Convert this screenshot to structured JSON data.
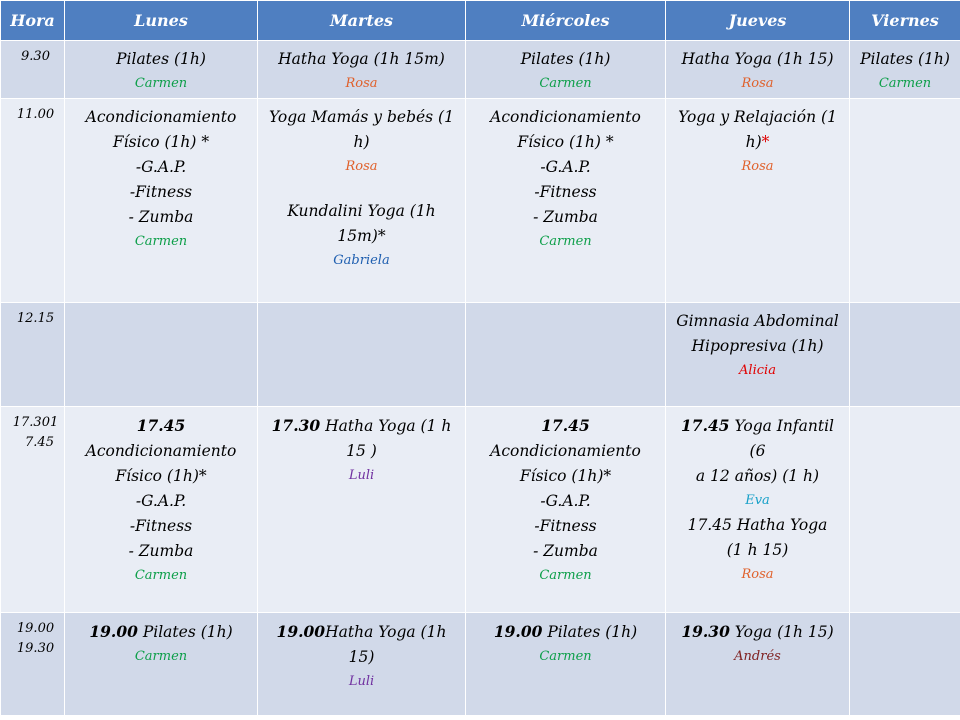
{
  "headers": {
    "hora": "Hora",
    "lunes": "Lunes",
    "martes": "Martes",
    "miercoles": "Miércoles",
    "jueves": "Jueves",
    "viernes": "Viernes"
  },
  "colors": {
    "header_bg": "#4f7fc1",
    "row_dark": "#d1d9e9",
    "row_light": "#e9edf5",
    "carmen": "#0e9f4a",
    "rosa": "#e0602a",
    "gabriela": "#1f5fb0",
    "luli": "#7030a0",
    "alicia": "#e00000",
    "eva": "#17a0c8",
    "andres": "#7f1f1f"
  },
  "r1": {
    "hora": "9.30",
    "lunes": {
      "class": "Pilates (1h)",
      "teacher": "Carmen"
    },
    "martes": {
      "class": "Hatha Yoga (1h 15m)",
      "teacher": "Rosa"
    },
    "miercoles": {
      "class": "Pilates (1h)",
      "teacher": "Carmen"
    },
    "jueves": {
      "class": "Hatha Yoga (1h 15)",
      "teacher": "Rosa"
    },
    "viernes": {
      "class": "Pilates (1h)",
      "teacher": "Carmen"
    }
  },
  "r2": {
    "hora": "11.00",
    "lunes": {
      "l1": "Acondicionamiento",
      "l2": "Físico (1h) *",
      "l3": "-G.A.P.",
      "l4": "-Fitness",
      "l5": "- Zumba",
      "teacher": "Carmen"
    },
    "martes": {
      "l1": "Yoga Mamás y bebés (1",
      "l2": "h)",
      "teacher": "Rosa",
      "l3": "Kundalini Yoga (1h",
      "l4": "15m)*",
      "teacher2": "Gabriela"
    },
    "miercoles": {
      "l1": "Acondicionamiento",
      "l2": "Físico (1h) *",
      "l3": "-G.A.P.",
      "l4": "-Fitness",
      "l5": "- Zumba",
      "teacher": "Carmen"
    },
    "jueves": {
      "l1": "Yoga y Relajación (1",
      "l2": "h)",
      "star": "*",
      "teacher": "Rosa"
    }
  },
  "r3": {
    "hora": "12.15",
    "jueves": {
      "l1": "Gimnasia Abdominal",
      "l2": "Hipopresiva (1h)",
      "teacher": "Alicia"
    }
  },
  "r4": {
    "hora1": "17.301",
    "hora2": "7.45",
    "lunes": {
      "time": "17.45",
      "l1": "Acondicionamiento",
      "l2": "Físico (1h)*",
      "l3": "-G.A.P.",
      "l4": "-Fitness",
      "l5": "- Zumba",
      "teacher": "Carmen"
    },
    "martes": {
      "time": "17.30",
      "l1": " Hatha Yoga (1 h",
      "l2": "15 )",
      "teacher": "Luli"
    },
    "miercoles": {
      "time": "17.45",
      "l1": "Acondicionamiento",
      "l2": "Físico (1h)*",
      "l3": "-G.A.P.",
      "l4": "-Fitness",
      "l5": "- Zumba",
      "teacher": "Carmen"
    },
    "jueves": {
      "time": "17.45",
      "l1": " Yoga Infantil (6",
      "l2": "a 12 años) (1 h)",
      "teacher": "Eva",
      "l3": "17.45 Hatha Yoga",
      "l4": "(1 h 15)",
      "teacher2": "Rosa"
    }
  },
  "r5": {
    "hora1": "19.00",
    "hora2": "19.30",
    "lunes": {
      "time": "19.00",
      "class": " Pilates (1h)",
      "teacher": "Carmen"
    },
    "martes": {
      "time": "19.00",
      "class": "Hatha Yoga (1h 15)",
      "teacher": "Luli"
    },
    "miercoles": {
      "time": "19.00",
      "class": " Pilates (1h)",
      "teacher": "Carmen"
    },
    "jueves": {
      "time": "19.30",
      "class": " Yoga  (1h 15)",
      "teacher": "Andrés"
    }
  }
}
